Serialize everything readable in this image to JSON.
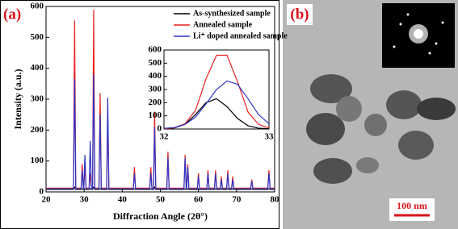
{
  "chart_data": [
    {
      "type": "line",
      "panel_label": "(a)",
      "xlabel": "Diffraction Angle (2θ°)",
      "ylabel": "Intensity (a.u.)",
      "x": [
        20,
        27.2,
        27.5,
        27.8,
        29.2,
        29.5,
        29.8,
        29.9,
        30.2,
        30.5,
        31.3,
        31.6,
        31.9,
        32.2,
        32.5,
        32.8,
        33.9,
        34.2,
        34.5,
        35.9,
        36.2,
        36.5,
        42.9,
        43.2,
        43.5,
        47.2,
        47.5,
        47.8,
        48.2,
        48.5,
        48.8,
        51.7,
        52,
        52.3,
        56.2,
        56.5,
        56.8,
        56.9,
        57.2,
        57.5,
        59.7,
        60,
        60.3,
        62.2,
        62.5,
        62.8,
        64.2,
        64.5,
        64.8,
        65.7,
        66,
        66.3,
        67.4,
        67.7,
        68,
        68.7,
        69,
        69.3,
        73.7,
        74,
        74.3,
        78.2,
        78.5,
        78.8,
        80
      ],
      "series": [
        {
          "name": "As-synthesized sample",
          "color": "#000000",
          "values": [
            8,
            8,
            15,
            8,
            8,
            10,
            8,
            8,
            10,
            8,
            8,
            10,
            8,
            8,
            15,
            8,
            8,
            10,
            8,
            8,
            10,
            8,
            8,
            10,
            8,
            8,
            10,
            8,
            8,
            15,
            8,
            8,
            10,
            8,
            8,
            10,
            8,
            8,
            10,
            8,
            8,
            10,
            8,
            8,
            10,
            8,
            8,
            10,
            8,
            8,
            10,
            8,
            8,
            10,
            8,
            8,
            10,
            8,
            8,
            10,
            8,
            8,
            10,
            8,
            8
          ]
        },
        {
          "name": "Annealed sample",
          "color": "#e8211f",
          "values": [
            12,
            12,
            555,
            12,
            12,
            90,
            12,
            12,
            80,
            12,
            12,
            60,
            12,
            12,
            590,
            12,
            12,
            320,
            12,
            12,
            240,
            12,
            12,
            80,
            12,
            12,
            80,
            12,
            12,
            260,
            12,
            12,
            130,
            12,
            12,
            120,
            12,
            12,
            90,
            12,
            12,
            60,
            12,
            12,
            70,
            12,
            12,
            70,
            12,
            12,
            50,
            12,
            12,
            70,
            12,
            12,
            50,
            12,
            12,
            40,
            12,
            12,
            70,
            12,
            12
          ]
        },
        {
          "name": "Li⁺ doped annealed sample",
          "color": "#2a35c8",
          "values": [
            10,
            10,
            365,
            10,
            10,
            70,
            10,
            10,
            120,
            10,
            10,
            165,
            10,
            10,
            380,
            10,
            10,
            250,
            10,
            10,
            305,
            10,
            10,
            60,
            10,
            10,
            60,
            10,
            10,
            210,
            10,
            10,
            110,
            10,
            10,
            110,
            10,
            10,
            80,
            10,
            10,
            50,
            10,
            10,
            60,
            10,
            10,
            60,
            10,
            10,
            40,
            10,
            10,
            60,
            10,
            10,
            40,
            10,
            10,
            35,
            10,
            10,
            60,
            10,
            10
          ]
        }
      ],
      "xlim": [
        20,
        80
      ],
      "xticks": [
        20,
        30,
        40,
        50,
        60,
        70,
        80
      ],
      "ylim": [
        0,
        600
      ],
      "yticks": [
        0,
        100,
        200,
        300,
        400,
        500,
        600
      ],
      "legend": "upper right"
    },
    {
      "type": "line",
      "x": [
        32,
        32.1,
        32.2,
        32.3,
        32.4,
        32.5,
        32.6,
        32.7,
        32.8,
        32.9,
        33
      ],
      "series": [
        {
          "name": "As-synthesized sample",
          "color": "#000000",
          "values": [
            2,
            8,
            35,
            110,
            200,
            230,
            170,
            80,
            25,
            6,
            2
          ]
        },
        {
          "name": "Annealed sample",
          "color": "#e8211f",
          "values": [
            2,
            10,
            40,
            140,
            380,
            560,
            560,
            360,
            130,
            35,
            8
          ]
        },
        {
          "name": "Li⁺ doped annealed sample",
          "color": "#2a35c8",
          "values": [
            5,
            12,
            35,
            90,
            190,
            300,
            365,
            340,
            230,
            110,
            40
          ]
        }
      ],
      "xlim": [
        32,
        33
      ],
      "xticks": [
        32,
        33
      ],
      "ylim": [
        0,
        600
      ],
      "yticks": [
        0,
        100,
        200,
        300,
        400,
        500,
        600
      ]
    }
  ],
  "image_panel": {
    "label": "(b)",
    "scale_bar": "100 nm"
  }
}
